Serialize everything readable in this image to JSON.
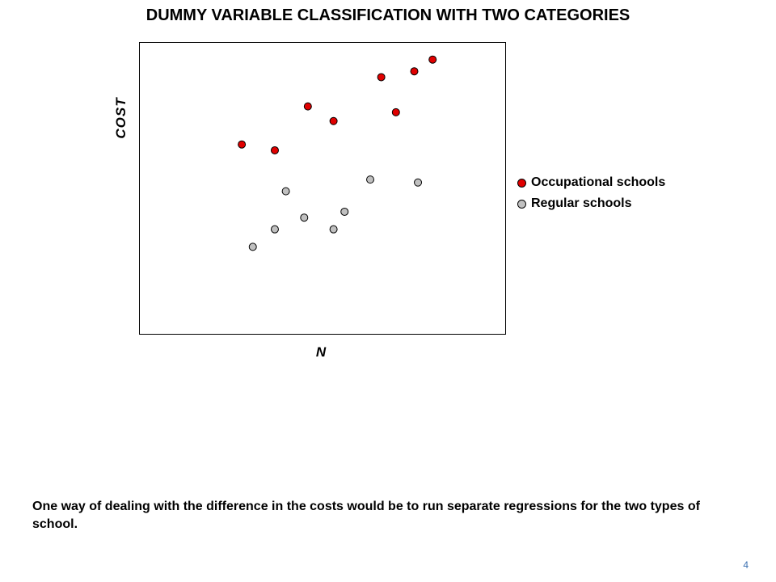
{
  "title": "DUMMY VARIABLE CLASSIFICATION WITH TWO CATEGORIES",
  "caption": "One way of dealing with the difference in the costs would be to run separate regressions for the two types of school.",
  "page_number": "4",
  "colors": {
    "occupational": "#e00000",
    "regular": "#c0c0c0",
    "page_number": "#3a6fb0"
  },
  "chart_data": {
    "type": "scatter",
    "title": "",
    "xlabel": "N",
    "ylabel": "COST",
    "xlim": [
      0,
      100
    ],
    "ylim": [
      0,
      100
    ],
    "grid": false,
    "legend_position": "right",
    "series": [
      {
        "name": "Occupational schools",
        "color": "#e00000",
        "points": [
          {
            "x": 28,
            "y": 65
          },
          {
            "x": 37,
            "y": 63
          },
          {
            "x": 46,
            "y": 78
          },
          {
            "x": 53,
            "y": 73
          },
          {
            "x": 66,
            "y": 88
          },
          {
            "x": 70,
            "y": 76
          },
          {
            "x": 75,
            "y": 90
          },
          {
            "x": 80,
            "y": 94
          }
        ]
      },
      {
        "name": "Regular schools",
        "color": "#c0c0c0",
        "points": [
          {
            "x": 31,
            "y": 30
          },
          {
            "x": 37,
            "y": 36
          },
          {
            "x": 40,
            "y": 49
          },
          {
            "x": 45,
            "y": 40
          },
          {
            "x": 53,
            "y": 36
          },
          {
            "x": 56,
            "y": 42
          },
          {
            "x": 63,
            "y": 53
          },
          {
            "x": 76,
            "y": 52
          }
        ]
      }
    ]
  }
}
